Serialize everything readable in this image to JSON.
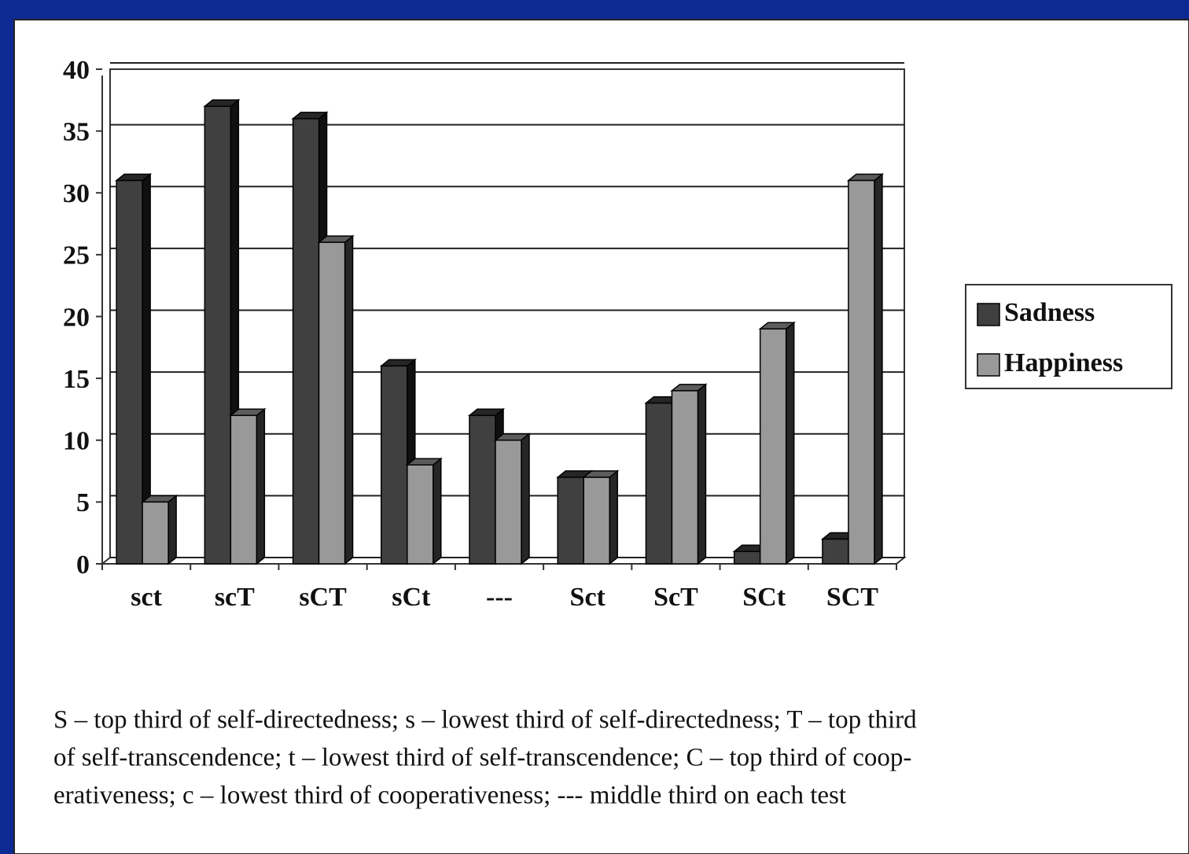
{
  "chart_data": {
    "type": "bar",
    "categories": [
      "sct",
      "scT",
      "sCT",
      "sCt",
      "---",
      "Sct",
      "ScT",
      "SCt",
      "SCT"
    ],
    "series": [
      {
        "name": "Sadness",
        "color": "#404040",
        "values": [
          31,
          37,
          36,
          16,
          12,
          7,
          13,
          1,
          2
        ]
      },
      {
        "name": "Happiness",
        "color": "#999999",
        "values": [
          5,
          12,
          26,
          8,
          10,
          7,
          14,
          19,
          31
        ]
      }
    ],
    "ylim": [
      0,
      40
    ],
    "yticks": [
      0,
      5,
      10,
      15,
      20,
      25,
      30,
      35,
      40
    ],
    "grid": true,
    "legend": "right",
    "footnote": [
      "S – top third of self-directedness; s – lowest third of self-directedness; T – top third",
      "of self-transcendence; t – lowest third of self-transcendence; C – top third of coop-",
      "erativeness; c – lowest third of cooperativeness; --- middle third on each test"
    ]
  }
}
